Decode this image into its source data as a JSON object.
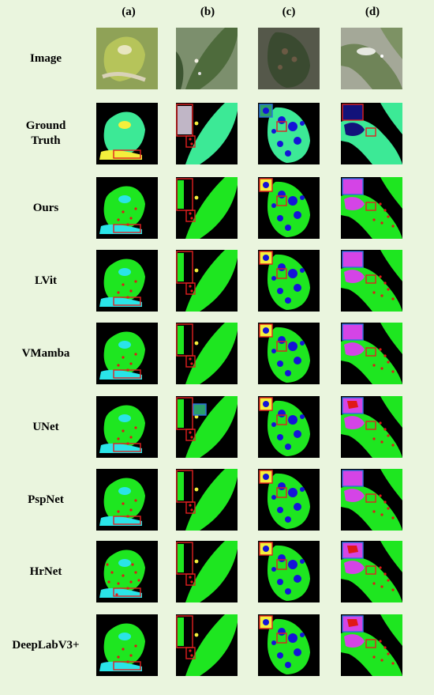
{
  "columns": [
    "(a)",
    "(b)",
    "(c)",
    "(d)"
  ],
  "rows": [
    {
      "label": "Image",
      "kind": "photo"
    },
    {
      "label": "Ground\nTruth",
      "kind": "gt"
    },
    {
      "label": "Ours",
      "kind": "pred"
    },
    {
      "label": "LVit",
      "kind": "pred"
    },
    {
      "label": "VMamba",
      "kind": "pred"
    },
    {
      "label": "UNet",
      "kind": "pred"
    },
    {
      "label": "PspNet",
      "kind": "pred"
    },
    {
      "label": "HrNet",
      "kind": "pred"
    },
    {
      "label": "DeepLabV3+",
      "kind": "pred"
    }
  ],
  "colors": {
    "background": "#000000",
    "leaf_gt": "#3ce996",
    "leaf_pred": "#1ee620",
    "lesion_red": "#e01818",
    "lesion_blue": "#1414d8",
    "lesion_cyan": "#2ae4e8",
    "lesion_yellow": "#f4ef3c",
    "lesion_magenta": "#d444e6",
    "lesion_navy": "#12127a",
    "box_red": "#e02020",
    "box_blue": "#2a6fe0"
  }
}
